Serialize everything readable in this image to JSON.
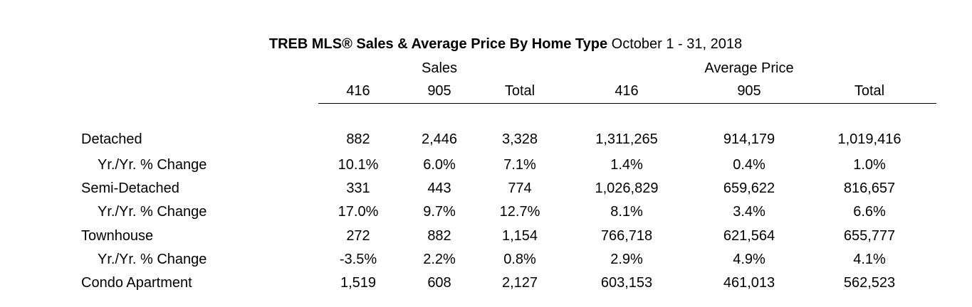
{
  "chart_data": {
    "type": "table",
    "title_bold": "TREB MLS® Sales & Average Price  By Home Type",
    "title_rest": " October 1 - 31, 2018",
    "column_groups": [
      "Sales",
      "Average Price"
    ],
    "columns": [
      "416",
      "905",
      "Total",
      "416",
      "905",
      "Total"
    ],
    "rows": [
      {
        "label": "Detached",
        "values": [
          "882",
          "2,446",
          "3,328",
          "1,311,265",
          "914,179",
          "1,019,416"
        ]
      },
      {
        "label": "Yr./Yr. % Change",
        "values": [
          "10.1%",
          "6.0%",
          "7.1%",
          "1.4%",
          "0.4%",
          "1.0%"
        ]
      },
      {
        "label": "Semi-Detached",
        "values": [
          "331",
          "443",
          "774",
          "1,026,829",
          "659,622",
          "816,657"
        ]
      },
      {
        "label": "Yr./Yr. % Change",
        "values": [
          "17.0%",
          "9.7%",
          "12.7%",
          "8.1%",
          "3.4%",
          "6.6%"
        ]
      },
      {
        "label": "Townhouse",
        "values": [
          "272",
          "882",
          "1,154",
          "766,718",
          "621,564",
          "655,777"
        ]
      },
      {
        "label": "Yr./Yr. % Change",
        "values": [
          "-3.5%",
          "2.2%",
          "0.8%",
          "2.9%",
          "4.9%",
          "4.1%"
        ]
      },
      {
        "label": "Condo Apartment",
        "values": [
          "1,519",
          "608",
          "2,127",
          "603,153",
          "461,013",
          "562,523"
        ]
      }
    ]
  }
}
